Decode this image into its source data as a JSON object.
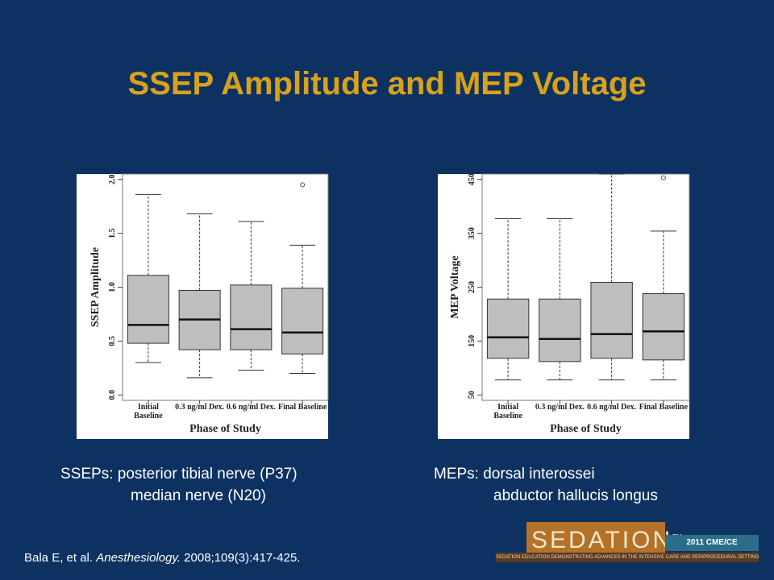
{
  "title": "SSEP Amplitude and MEP Voltage",
  "captions": {
    "left": [
      "SSEPs: posterior tibial nerve (P37)",
      "median nerve (N20)"
    ],
    "right": [
      "MEPs: dorsal interossei",
      "abductor hallucis longus"
    ]
  },
  "citation": {
    "authors": "Bala E, et al. ",
    "journal": "Anesthesiology.",
    "details": " 2008;109(3):417-425."
  },
  "logo": {
    "name": "SEDATION",
    "mark": "TM",
    "year": "2011 CME/CE Curriculum",
    "tagline": "Sedation Education Demonstrating Advances in the Intensive Care and Periprocedural Settings"
  },
  "chart_data": [
    {
      "type": "box",
      "ylabel": "SSEP Amplitude",
      "xlabel": "Phase of Study",
      "categories": [
        "Initial Baseline",
        "0.3 ng/ml Dex.",
        "0.6 ng/ml Dex.",
        "Final Baseline"
      ],
      "min": [
        0.3,
        0.16,
        0.23,
        0.2
      ],
      "q1": [
        0.48,
        0.42,
        0.42,
        0.38
      ],
      "median": [
        0.65,
        0.7,
        0.61,
        0.58
      ],
      "q3": [
        1.11,
        0.97,
        1.02,
        0.99
      ],
      "max": [
        1.86,
        1.68,
        1.61,
        1.39
      ],
      "outliers": [
        [],
        [],
        [],
        [
          1.95
        ]
      ],
      "color": "#bebebe",
      "ylim": [
        -0.05,
        2.05
      ],
      "yticks": [
        {
          "value": 0,
          "label": "0.0"
        },
        0.5,
        {
          "value": 1,
          "label": "1.0"
        },
        1.5,
        {
          "value": 2,
          "label": "2.0"
        }
      ]
    },
    {
      "type": "box",
      "ylabel": "MEP Voltage",
      "xlabel": "Phase of Study",
      "categories": [
        "Initial Baseline",
        "0.3 ng/ml Dex.",
        "0.6 ng/ml Dex.",
        "Final Baseline"
      ],
      "min": [
        78,
        78,
        78,
        78
      ],
      "q1": [
        118,
        112,
        118,
        115
      ],
      "median": [
        157,
        154,
        163,
        168
      ],
      "q3": [
        228,
        228,
        259,
        238
      ],
      "max": [
        377,
        377,
        460,
        354
      ],
      "outliers": [
        [],
        [],
        [],
        [
          453
        ]
      ],
      "color": "#bebebe",
      "ylim": [
        40,
        460
      ],
      "yticks": [
        50,
        150,
        250,
        350,
        450
      ]
    }
  ]
}
